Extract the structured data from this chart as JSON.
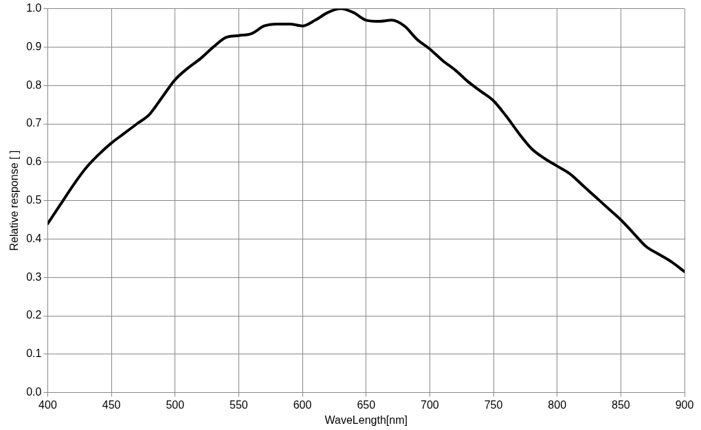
{
  "chart_data": {
    "type": "line",
    "xlabel": "WaveLength[nm]",
    "ylabel": "Relative response [ ]",
    "x": [
      400,
      410,
      420,
      430,
      440,
      450,
      460,
      470,
      480,
      490,
      500,
      510,
      520,
      530,
      540,
      550,
      560,
      570,
      580,
      590,
      600,
      610,
      620,
      630,
      640,
      650,
      660,
      670,
      680,
      690,
      700,
      710,
      720,
      730,
      740,
      750,
      760,
      770,
      780,
      790,
      800,
      810,
      820,
      830,
      840,
      850,
      860,
      870,
      880,
      890,
      900
    ],
    "series": [
      {
        "color": "#000000",
        "values": [
          0.44,
          0.49,
          0.54,
          0.585,
          0.62,
          0.65,
          0.675,
          0.7,
          0.725,
          0.77,
          0.815,
          0.845,
          0.87,
          0.9,
          0.925,
          0.93,
          0.935,
          0.955,
          0.96,
          0.96,
          0.955,
          0.97,
          0.99,
          1.0,
          0.99,
          0.97,
          0.967,
          0.97,
          0.955,
          0.92,
          0.895,
          0.865,
          0.84,
          0.81,
          0.785,
          0.76,
          0.72,
          0.675,
          0.635,
          0.61,
          0.59,
          0.57,
          0.54,
          0.51,
          0.48,
          0.45,
          0.415,
          0.38,
          0.36,
          0.34,
          0.315
        ]
      }
    ],
    "xlim": [
      400,
      900
    ],
    "xticks": [
      400,
      450,
      500,
      550,
      600,
      650,
      700,
      750,
      800,
      850,
      900
    ],
    "ylim": [
      0,
      1
    ],
    "yticks": [
      {
        "value": 0,
        "label": "0.0"
      },
      {
        "value": 0.1,
        "label": "0.1"
      },
      {
        "value": 0.2,
        "label": "0.2"
      },
      {
        "value": 0.3,
        "label": "0.3"
      },
      {
        "value": 0.4,
        "label": "0.4"
      },
      {
        "value": 0.5,
        "label": "0.5"
      },
      {
        "value": 0.6,
        "label": "0.6"
      },
      {
        "value": 0.7,
        "label": "0.7"
      },
      {
        "value": 0.8,
        "label": "0.8"
      },
      {
        "value": 0.9,
        "label": "0.9"
      },
      {
        "value": 1,
        "label": "1.0"
      }
    ],
    "grid": true,
    "legend": false,
    "marker": "none",
    "line_style": "solid"
  }
}
